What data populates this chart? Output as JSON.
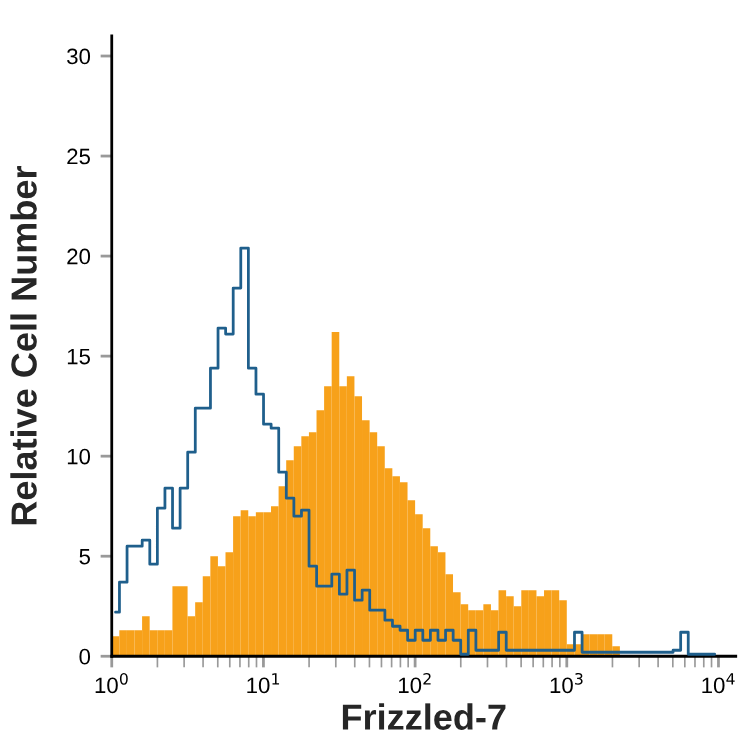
{
  "chart_data": {
    "type": "histogram",
    "xlabel": "Frizzled-7",
    "ylabel": "Relative Cell Number",
    "log": "x",
    "bins": [
      1,
      1.122,
      1.259,
      1.413,
      1.585,
      1.778,
      1.995,
      2.239,
      2.512,
      2.818,
      3.162,
      3.548,
      3.981,
      4.467,
      5.012,
      5.623,
      6.31,
      7.079,
      7.943,
      8.913,
      10,
      11.22,
      12.59,
      14.13,
      15.85,
      17.78,
      19.95,
      22.39,
      25.12,
      28.18,
      31.62,
      35.48,
      39.81,
      44.67,
      50.12,
      56.23,
      63.1,
      70.79,
      79.43,
      89.13,
      100,
      112.2,
      125.9,
      141.3,
      158.5,
      177.8,
      199.5,
      223.9,
      251.2,
      281.8,
      316.2,
      354.8,
      398.1,
      446.7,
      501.2,
      562.3,
      631,
      707.9,
      794.3,
      891.3,
      1000,
      1122,
      1259,
      1413,
      1585,
      1778,
      1995,
      2239,
      2512,
      2818,
      3162,
      3548,
      3981,
      4467,
      5012,
      5623,
      6310,
      7079,
      7943,
      8913,
      10000
    ],
    "series": [
      {
        "type": "histogram",
        "color": "#f7a11a",
        "values": [
          1.0,
          1.3,
          1.3,
          1.3,
          2.0,
          1.3,
          1.3,
          1.3,
          3.5,
          3.5,
          2.0,
          2.7,
          4.0,
          5.0,
          4.5,
          5.2,
          7.0,
          7.3,
          7.0,
          7.2,
          7.2,
          7.5,
          8.5,
          9.8,
          10.5,
          11.0,
          11.2,
          12.3,
          13.5,
          16.2,
          13.5,
          14.0,
          13.0,
          11.8,
          11.2,
          10.5,
          9.4,
          9.0,
          8.7,
          7.8,
          7.1,
          6.4,
          5.5,
          5.2,
          4.1,
          3.2,
          2.6,
          2.3,
          2.3,
          2.6,
          2.3,
          3.3,
          3.0,
          2.5,
          3.3,
          3.3,
          3.0,
          3.3,
          3.3,
          2.8,
          0.6,
          0.6,
          1.1,
          1.1,
          1.1,
          1.1,
          0.5,
          0,
          0,
          0,
          0,
          0,
          0,
          0,
          0,
          0,
          0,
          0,
          0,
          0
        ]
      },
      {
        "type": "step",
        "color": "#1f5f8c",
        "x": [
          1.059,
          1.189,
          1.334,
          1.496,
          1.679,
          1.884,
          2.113,
          2.371,
          2.661,
          2.985,
          3.35,
          3.758,
          4.217,
          4.732,
          5.309,
          5.957,
          6.683,
          7.499,
          8.414,
          9.441,
          10.59,
          11.89,
          13.34,
          14.96,
          16.79,
          18.84,
          21.13,
          23.71,
          26.61,
          29.85,
          33.5,
          37.58,
          42.17,
          47.32,
          53.09,
          59.57,
          66.83,
          74.99,
          84.14,
          94.41,
          105.9,
          118.9,
          133.4,
          149.6,
          167.9,
          188.4,
          211.3,
          237.1,
          266.1,
          298.5,
          335,
          375.8,
          421.7,
          473.2,
          530.9,
          595.7,
          668.3,
          749.9,
          841.4,
          944.1,
          1059,
          1189,
          1334,
          1496,
          1679,
          1884,
          2113,
          2371,
          2661,
          2985,
          3350,
          3758,
          4217,
          4732,
          5309,
          5957,
          6683,
          7499,
          8414,
          9441
        ],
        "values": [
          2.2,
          3.7,
          5.5,
          5.5,
          5.8,
          4.6,
          7.4,
          8.4,
          6.4,
          8.4,
          10.2,
          12.4,
          12.4,
          14.4,
          16.4,
          16.1,
          18.4,
          20.4,
          14.4,
          13.1,
          11.6,
          11.4,
          9.2,
          7.9,
          7.0,
          7.3,
          4.5,
          3.5,
          3.5,
          4.1,
          3.1,
          4.3,
          2.8,
          3.3,
          2.3,
          2.3,
          1.8,
          1.5,
          1.3,
          0.8,
          1.3,
          0.8,
          1.3,
          0.8,
          1.3,
          0.8,
          0.1,
          1.3,
          0.3,
          0.3,
          0.3,
          1.2,
          0.3,
          0.3,
          0.3,
          0.3,
          0.3,
          0.3,
          0.3,
          0.3,
          0.3,
          1.2,
          0.2,
          0.2,
          0.2,
          0.2,
          0.2,
          0.2,
          0.2,
          0.2,
          0.2,
          0.2,
          0.2,
          0.2,
          0.3,
          1.2,
          0.1,
          0.1,
          0.1,
          0.1
        ]
      }
    ],
    "xlim": [
      1,
      13000
    ],
    "xticks": [
      {
        "value": 1,
        "label": "10$^{0}$"
      },
      {
        "value": 10,
        "label": "10$^{1}$"
      },
      {
        "value": 100,
        "label": "10$^{2}$"
      },
      {
        "value": 1000,
        "label": "10$^{3}$"
      },
      {
        "value": 10000,
        "label": "10$^{4}$"
      }
    ],
    "ylim": [
      0,
      31
    ],
    "yticks": [
      0,
      5,
      10,
      15,
      20,
      25,
      30
    ],
    "grid": false,
    "legend": false
  }
}
